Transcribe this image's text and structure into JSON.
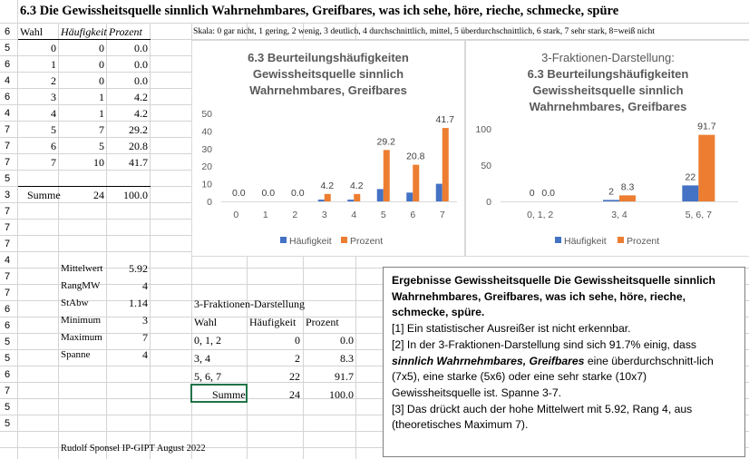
{
  "sheet": {
    "title": "6.3 Die Gewissheitsquelle sinnlich Wahrnehmbares, Greifbares, was ich sehe, höre, rieche, schmecke, spüre",
    "scale_note": "Skala: 0 gar nicht, 1 gering, 2 wenig, 3 deutlich, 4 durchschnittlich, mittel, 5 überdurchschnittlich, 6 stark, 7 sehr stark, 8=weiß nicht",
    "row_numbers": [
      "6",
      "5",
      "6",
      "4",
      "6",
      "4",
      "7",
      "7",
      "7",
      "5",
      "3",
      "7",
      "7",
      "7",
      "4",
      "7",
      "7",
      "6",
      "6",
      "5",
      "5",
      "6",
      "7",
      "5",
      "5"
    ],
    "freq_table": {
      "headers": [
        "Wahl",
        "Häufigkeit",
        "Prozent"
      ],
      "rows": [
        {
          "wahl": "0",
          "haeufigkeit": "0",
          "prozent": "0.0"
        },
        {
          "wahl": "1",
          "haeufigkeit": "0",
          "prozent": "0.0"
        },
        {
          "wahl": "2",
          "haeufigkeit": "0",
          "prozent": "0.0"
        },
        {
          "wahl": "3",
          "haeufigkeit": "1",
          "prozent": "4.2"
        },
        {
          "wahl": "4",
          "haeufigkeit": "1",
          "prozent": "4.2"
        },
        {
          "wahl": "5",
          "haeufigkeit": "7",
          "prozent": "29.2"
        },
        {
          "wahl": "6",
          "haeufigkeit": "5",
          "prozent": "20.8"
        },
        {
          "wahl": "7",
          "haeufigkeit": "10",
          "prozent": "41.7"
        }
      ],
      "sum": {
        "label": "Summe",
        "haeufigkeit": "24",
        "prozent": "100.0"
      }
    },
    "stats": [
      {
        "label": "Mittelwert",
        "value": "5.92"
      },
      {
        "label": "RangMW",
        "value": "4"
      },
      {
        "label": "StAbw",
        "value": "1.14"
      },
      {
        "label": "Minimum",
        "value": "3"
      },
      {
        "label": "Maximum",
        "value": "7"
      },
      {
        "label": "Spanne",
        "value": "4"
      }
    ],
    "three_fraction": {
      "title": "3-Fraktionen-Darstellung",
      "headers": [
        "Wahl",
        "Häufigkeit",
        "Prozent"
      ],
      "rows": [
        {
          "wahl": "0, 1, 2",
          "haeufigkeit": "0",
          "prozent": "0.0"
        },
        {
          "wahl": "3, 4",
          "haeufigkeit": "2",
          "prozent": "8.3"
        },
        {
          "wahl": "5, 6, 7",
          "haeufigkeit": "22",
          "prozent": "91.7"
        }
      ],
      "sum": {
        "label": "Summe",
        "haeufigkeit": "24",
        "prozent": "100.0"
      }
    },
    "footer": "Rudolf Sponsel IP-GIPT August 2022"
  },
  "colors": {
    "haeufigkeit": "#4472c4",
    "prozent": "#ed7d31",
    "axis": "#d9d9d9",
    "text": "#595959"
  },
  "chart_data": [
    {
      "type": "bar",
      "title": "6.3 Beurteilungshäufigkeiten Gewissheitsquelle sinnlich Wahrnehmbares, Greifbares",
      "title_lines": [
        "6.3 Beurteilungshäufigkeiten",
        "Gewissheitsquelle sinnlich",
        "Wahrnehmbares, Greifbares"
      ],
      "categories": [
        "0",
        "1",
        "2",
        "3",
        "4",
        "5",
        "6",
        "7"
      ],
      "series": [
        {
          "name": "Häufigkeit",
          "values": [
            0,
            0,
            0,
            1,
            1,
            7,
            5,
            10
          ]
        },
        {
          "name": "Prozent",
          "values": [
            0.0,
            0.0,
            0.0,
            4.2,
            4.2,
            29.2,
            20.8,
            41.7
          ]
        }
      ],
      "data_labels": [
        "0.0",
        "0.0",
        "0.0",
        "4.2",
        "4.2",
        "29.2",
        "20.8",
        "41.7"
      ],
      "ylim": [
        0,
        50
      ],
      "yticks": [
        "0",
        "10",
        "20",
        "30",
        "40",
        "50"
      ],
      "legend": "bottom",
      "grid": false
    },
    {
      "type": "bar",
      "title": "3-Fraktionen-Darstellung: 6.3 Beurteilungshäufigkeiten Gewissheitsquelle sinnlich Wahrnehmbares, Greifbares",
      "title_lines": [
        "3-Fraktionen-Darstellung:",
        "6.3 Beurteilungshäufigkeiten",
        "Gewissheitsquelle sinnlich",
        "Wahrnehmbares, Greifbares"
      ],
      "categories": [
        "0, 1, 2",
        "3, 4",
        "5, 6, 7"
      ],
      "series": [
        {
          "name": "Häufigkeit",
          "values": [
            0,
            2,
            22
          ]
        },
        {
          "name": "Prozent",
          "values": [
            0.0,
            8.3,
            91.7
          ]
        }
      ],
      "freq_labels": [
        "0",
        "2",
        "22"
      ],
      "pct_labels": [
        "0.0",
        "8.3",
        "91.7"
      ],
      "ylim": [
        0,
        100
      ],
      "yticks": [
        "0",
        "50",
        "100"
      ],
      "legend": "bottom",
      "grid": false
    }
  ],
  "textbox": {
    "heading": "Ergebnisse Gewissheitsquelle Die Gewissheitsquelle sinnlich Wahrnehmbares, Greifbares, was ich sehe, höre, rieche, schmecke, spüre.",
    "p1": "[1]  Ein statistischer Ausreißer ist nicht erkennbar.",
    "p2_a": "[2]  In der 3-Fraktionen-Darstellung sind sich 91.7% einig, dass ",
    "p2_em": "sinnlich Wahrnehmbares, Greifbares",
    "p2_b": " eine  überdurchschnitt-lich (7x5), eine starke (5x6) oder eine sehr starke (10x7) Gewissheitsquelle ist. Spanne 3-7.",
    "p3": "[3] Das drückt auch der hohe Mittelwert mit 5.92, Rang 4, aus (theoretisches Maximum 7)."
  }
}
